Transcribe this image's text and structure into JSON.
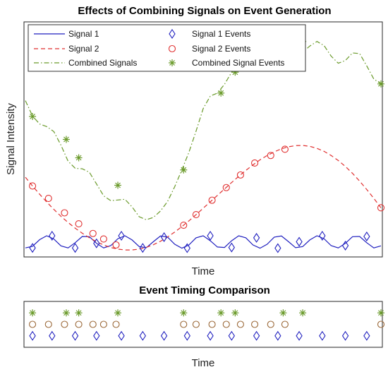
{
  "chart_data": [
    {
      "type": "line",
      "title": "Effects of Combining Signals on Event Generation",
      "xlabel": "Time",
      "ylabel": "Signal Intensity",
      "xlim": [
        0,
        1
      ],
      "ylim": [
        0,
        1
      ],
      "grid": false,
      "legend": "top-left",
      "series": [
        {
          "name": "Signal 1",
          "style": "solid",
          "color": "#1f1fbf",
          "x": [
            0.0,
            0.02,
            0.04,
            0.06,
            0.08,
            0.1,
            0.12,
            0.14,
            0.16,
            0.18,
            0.2,
            0.22,
            0.24,
            0.26,
            0.28,
            0.3,
            0.32,
            0.34,
            0.36,
            0.38,
            0.4,
            0.42,
            0.44,
            0.46,
            0.48,
            0.5,
            0.52,
            0.54,
            0.56,
            0.58,
            0.6,
            0.62,
            0.64,
            0.66,
            0.68,
            0.7,
            0.72,
            0.74,
            0.76,
            0.78,
            0.8,
            0.82,
            0.84,
            0.86,
            0.88,
            0.9,
            0.92,
            0.94,
            0.96,
            0.98,
            1.0
          ],
          "y": [
            0.027,
            0.034,
            0.063,
            0.08,
            0.066,
            0.036,
            0.027,
            0.05,
            0.077,
            0.076,
            0.047,
            0.027,
            0.037,
            0.067,
            0.08,
            0.062,
            0.033,
            0.028,
            0.054,
            0.079,
            0.074,
            0.043,
            0.026,
            0.04,
            0.071,
            0.08,
            0.058,
            0.031,
            0.029,
            0.058,
            0.08,
            0.071,
            0.04,
            0.026,
            0.043,
            0.074,
            0.079,
            0.054,
            0.028,
            0.033,
            0.062,
            0.08,
            0.067,
            0.037,
            0.027,
            0.047,
            0.076,
            0.077,
            0.05,
            0.027,
            0.036
          ]
        },
        {
          "name": "Signal 2",
          "style": "dashed",
          "color": "#e03030",
          "x": [
            0.0,
            0.02,
            0.04,
            0.06,
            0.08,
            0.1,
            0.12,
            0.14,
            0.16,
            0.18,
            0.2,
            0.22,
            0.24,
            0.26,
            0.28,
            0.3,
            0.32,
            0.34,
            0.36,
            0.38,
            0.4,
            0.42,
            0.44,
            0.46,
            0.48,
            0.5,
            0.52,
            0.54,
            0.56,
            0.58,
            0.6,
            0.62,
            0.64,
            0.66,
            0.68,
            0.7,
            0.72,
            0.74,
            0.76,
            0.78,
            0.8,
            0.82,
            0.84,
            0.86,
            0.88,
            0.9,
            0.92,
            0.94,
            0.96,
            0.98,
            1.0
          ],
          "y": [
            0.335,
            0.297,
            0.261,
            0.227,
            0.195,
            0.165,
            0.138,
            0.113,
            0.091,
            0.071,
            0.054,
            0.04,
            0.029,
            0.022,
            0.018,
            0.018,
            0.022,
            0.03,
            0.041,
            0.056,
            0.075,
            0.096,
            0.12,
            0.145,
            0.172,
            0.2,
            0.228,
            0.256,
            0.284,
            0.312,
            0.339,
            0.365,
            0.389,
            0.411,
            0.43,
            0.446,
            0.459,
            0.468,
            0.473,
            0.474,
            0.47,
            0.461,
            0.448,
            0.43,
            0.408,
            0.382,
            0.352,
            0.318,
            0.282,
            0.243,
            0.202
          ]
        },
        {
          "name": "Combined Signals",
          "style": "dashdot",
          "color": "#6a9a2a",
          "x": [
            0.0,
            0.02,
            0.04,
            0.06,
            0.08,
            0.1,
            0.12,
            0.14,
            0.16,
            0.18,
            0.2,
            0.22,
            0.24,
            0.26,
            0.28,
            0.3,
            0.32,
            0.34,
            0.36,
            0.38,
            0.4,
            0.42,
            0.44,
            0.46,
            0.48,
            0.5,
            0.52,
            0.54,
            0.56,
            0.58,
            0.6,
            0.62,
            0.64,
            0.66,
            0.68,
            0.7,
            0.72,
            0.74,
            0.76,
            0.78,
            0.8,
            0.82,
            0.84,
            0.86,
            0.88,
            0.9,
            0.92,
            0.94,
            0.96,
            0.98,
            1.0
          ],
          "y": [
            0.669,
            0.602,
            0.567,
            0.556,
            0.534,
            0.475,
            0.405,
            0.374,
            0.372,
            0.357,
            0.306,
            0.254,
            0.233,
            0.236,
            0.239,
            0.206,
            0.163,
            0.15,
            0.16,
            0.188,
            0.23,
            0.294,
            0.367,
            0.444,
            0.536,
            0.634,
            0.689,
            0.702,
            0.74,
            0.793,
            0.825,
            0.841,
            0.864,
            0.886,
            0.914,
            0.924,
            0.898,
            0.874,
            0.87,
            0.881,
            0.907,
            0.927,
            0.909,
            0.863,
            0.832,
            0.844,
            0.877,
            0.874,
            0.821,
            0.763,
            0.742
          ]
        },
        {
          "name": "Signal 1 Events",
          "marker": "diamond",
          "color": "#1f1fbf",
          "x": [
            0.02,
            0.075,
            0.14,
            0.2,
            0.27,
            0.33,
            0.39,
            0.455,
            0.52,
            0.58,
            0.65,
            0.71,
            0.77,
            0.835,
            0.9,
            0.96
          ],
          "y": [
            0.027,
            0.08,
            0.027,
            0.047,
            0.08,
            0.027,
            0.074,
            0.026,
            0.08,
            0.029,
            0.071,
            0.026,
            0.054,
            0.08,
            0.037,
            0.077
          ]
        },
        {
          "name": "Signal 2 Events",
          "marker": "circle",
          "color": "#e03030",
          "x": [
            0.02,
            0.065,
            0.11,
            0.15,
            0.19,
            0.22,
            0.255,
            0.445,
            0.48,
            0.525,
            0.565,
            0.605,
            0.645,
            0.69,
            0.73,
            1.0
          ],
          "y": [
            0.297,
            0.243,
            0.18,
            0.132,
            0.09,
            0.066,
            0.04,
            0.126,
            0.172,
            0.235,
            0.29,
            0.345,
            0.397,
            0.43,
            0.457,
            0.202
          ]
        },
        {
          "name": "Combined Signal Events",
          "marker": "asterisk",
          "color": "#6a9a2a",
          "x": [
            0.02,
            0.115,
            0.15,
            0.26,
            0.445,
            0.55,
            0.59,
            0.725,
            0.78,
            1.0
          ],
          "y": [
            0.6,
            0.5,
            0.42,
            0.3,
            0.367,
            0.702,
            0.793,
            0.885,
            0.927,
            0.742
          ]
        }
      ]
    },
    {
      "type": "scatter",
      "title": "Event Timing Comparison",
      "xlabel": "Time",
      "xlim": [
        0,
        1
      ],
      "ylim": [
        0,
        4
      ],
      "grid": false,
      "series": [
        {
          "name": "Signal 1 Events",
          "marker": "diamond",
          "color": "#1f1fbf",
          "x": [
            0.02,
            0.075,
            0.14,
            0.2,
            0.27,
            0.33,
            0.39,
            0.455,
            0.52,
            0.58,
            0.65,
            0.71,
            0.77,
            0.835,
            0.9,
            0.96
          ],
          "y": [
            1,
            1,
            1,
            1,
            1,
            1,
            1,
            1,
            1,
            1,
            1,
            1,
            1,
            1,
            1,
            1
          ]
        },
        {
          "name": "Signal 2 Events",
          "marker": "circle",
          "color": "#9c6a3a",
          "x": [
            0.02,
            0.065,
            0.11,
            0.15,
            0.19,
            0.22,
            0.255,
            0.445,
            0.48,
            0.525,
            0.565,
            0.605,
            0.645,
            0.69,
            0.73,
            1.0
          ],
          "y": [
            2,
            2,
            2,
            2,
            2,
            2,
            2,
            2,
            2,
            2,
            2,
            2,
            2,
            2,
            2,
            2
          ]
        },
        {
          "name": "Combined Signal Events",
          "marker": "asterisk",
          "color": "#6a9a2a",
          "x": [
            0.02,
            0.115,
            0.15,
            0.26,
            0.445,
            0.55,
            0.59,
            0.725,
            0.78,
            1.0
          ],
          "y": [
            3,
            3,
            3,
            3,
            3,
            3,
            3,
            3,
            3,
            3
          ]
        }
      ]
    }
  ]
}
